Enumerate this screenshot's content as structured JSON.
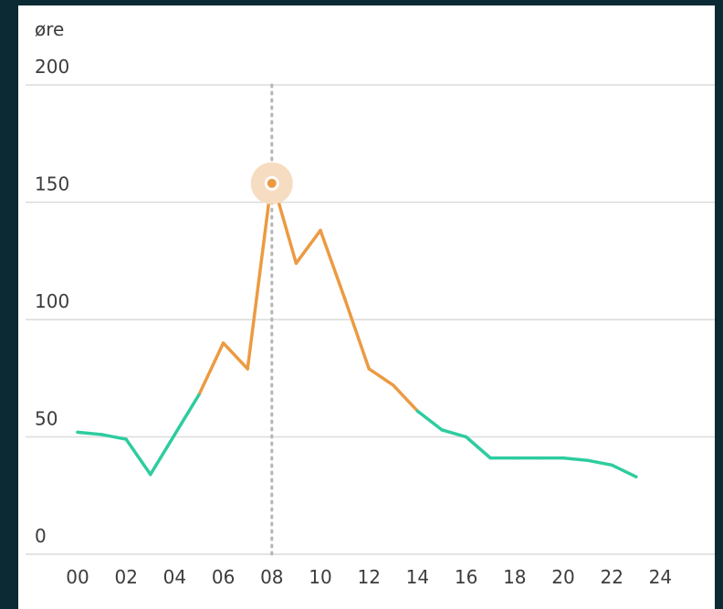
{
  "chart_data": {
    "type": "line",
    "y_unit_label": "øre",
    "ylim": [
      0,
      200
    ],
    "xlim": [
      0,
      24
    ],
    "y_ticks": [
      0,
      50,
      100,
      150,
      200
    ],
    "x_ticks": [
      "00",
      "02",
      "04",
      "06",
      "08",
      "10",
      "12",
      "14",
      "16",
      "18",
      "20",
      "22",
      "24"
    ],
    "grid": "horizontal",
    "x": [
      0,
      1,
      2,
      3,
      4,
      5,
      6,
      7,
      8,
      9,
      10,
      11,
      12,
      13,
      14,
      15,
      16,
      17,
      18,
      19,
      20,
      21,
      22,
      23
    ],
    "values": [
      52,
      51,
      49,
      34,
      51,
      68,
      90,
      79,
      160,
      124,
      138,
      109,
      79,
      72,
      61,
      53,
      50,
      41,
      41,
      41,
      41,
      40,
      38,
      33
    ],
    "high_threshold": 68,
    "colors": {
      "low": "#2ecc9f",
      "high": "#ec9a42",
      "marker_halo": "#f6dcc0",
      "grid": "#dcdcdc",
      "crosshair": "#b5b5b5"
    },
    "selected_x": 8
  }
}
